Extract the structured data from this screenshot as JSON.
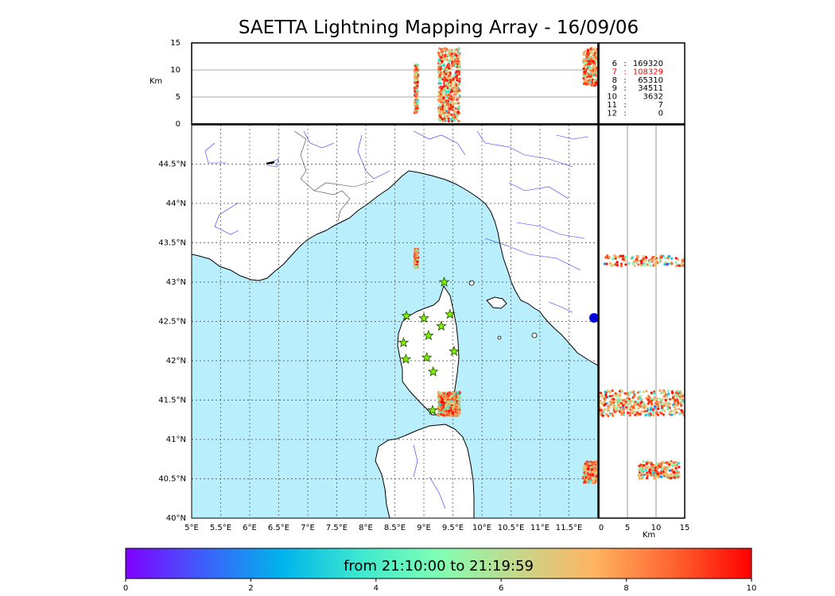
{
  "title": "SAETTA Lightning Mapping Array - 16/09/06",
  "axes": {
    "lon_ticks": [
      "5°E",
      "5.5°E",
      "6°E",
      "6.5°E",
      "7°E",
      "7.5°E",
      "8°E",
      "8.5°E",
      "9°E",
      "9.5°E",
      "10°E",
      "10.5°E",
      "11°E",
      "11.5°E"
    ],
    "lon_values": [
      5,
      5.5,
      6,
      6.5,
      7,
      7.5,
      8,
      8.5,
      9,
      9.5,
      10,
      10.5,
      11,
      11.5
    ],
    "lat_ticks": [
      "40°N",
      "40.5°N",
      "41°N",
      "41.5°N",
      "42°N",
      "42.5°N",
      "43°N",
      "43.5°N",
      "44°N",
      "44.5°N"
    ],
    "lat_values": [
      40,
      40.5,
      41,
      41.5,
      42,
      42.5,
      43,
      43.5,
      44,
      44.5
    ],
    "alt_ticks": [
      "0",
      "5",
      "10",
      "15"
    ],
    "alt_values": [
      0,
      5,
      10,
      15
    ],
    "alt_label": "Km",
    "lon_range": [
      5,
      12
    ],
    "lat_range": [
      40,
      45
    ],
    "alt_range": [
      0,
      15
    ]
  },
  "stations_count": {
    "rows": [
      {
        "stations": "6",
        "count": "169320",
        "color": "#000000"
      },
      {
        "stations": "7",
        "count": "108329",
        "color": "#ff0000"
      },
      {
        "stations": "8",
        "count": "65310",
        "color": "#000000"
      },
      {
        "stations": "9",
        "count": "34511",
        "color": "#000000"
      },
      {
        "stations": "10",
        "count": "3632",
        "color": "#000000"
      },
      {
        "stations": "11",
        "count": "7",
        "color": "#000000"
      },
      {
        "stations": "12",
        "count": "0",
        "color": "#000000"
      }
    ]
  },
  "stations": [
    {
      "lon": 9.35,
      "lat": 43.0
    },
    {
      "lon": 8.7,
      "lat": 42.57
    },
    {
      "lon": 9.0,
      "lat": 42.54
    },
    {
      "lon": 9.45,
      "lat": 42.59
    },
    {
      "lon": 9.3,
      "lat": 42.44
    },
    {
      "lon": 9.08,
      "lat": 42.32
    },
    {
      "lon": 8.65,
      "lat": 42.23
    },
    {
      "lon": 9.52,
      "lat": 42.12
    },
    {
      "lon": 8.69,
      "lat": 42.02
    },
    {
      "lon": 9.05,
      "lat": 42.04
    },
    {
      "lon": 9.16,
      "lat": 41.86
    },
    {
      "lon": 9.15,
      "lat": 41.37
    }
  ],
  "lightning_clusters": [
    {
      "lon": [
        8.84,
        8.9
      ],
      "lat": [
        43.18,
        43.42
      ],
      "alt": [
        2,
        11
      ],
      "n": 160
    },
    {
      "lon": [
        9.25,
        9.62
      ],
      "lat": [
        41.3,
        41.6
      ],
      "alt": [
        0.5,
        14
      ],
      "n": 500
    },
    {
      "lon": [
        11.75,
        12.0
      ],
      "lat": [
        40.45,
        40.72
      ],
      "alt": [
        7,
        14
      ],
      "n": 220
    },
    {
      "lon_east_panel": true,
      "lat": [
        41.3,
        41.62
      ],
      "alt": [
        0,
        15
      ],
      "n": 380
    },
    {
      "lon_east_panel": true,
      "lat": [
        40.5,
        40.72
      ],
      "alt": [
        7,
        14
      ],
      "n": 200
    },
    {
      "lon_east_panel": true,
      "lat": [
        43.2,
        43.34
      ],
      "alt": [
        1,
        15
      ],
      "n": 120
    }
  ],
  "colorbar": {
    "label": "from 21:10:00 to 21:19:59",
    "ticks": [
      "0",
      "2",
      "4",
      "6",
      "8",
      "10"
    ],
    "values": [
      0,
      2,
      4,
      6,
      8,
      10
    ],
    "range": [
      0,
      10
    ],
    "colors": [
      "#7f00ff",
      "#3d5ffb",
      "#00b4eb",
      "#3ee8cf",
      "#80ffb4",
      "#c6d88c",
      "#ffb360",
      "#ff6430",
      "#ff0000"
    ]
  },
  "colors": {
    "sea": "#b9eefc",
    "land": "#ffffff",
    "river": "#3333ff",
    "coast": "#000000",
    "star": "#84f000"
  }
}
